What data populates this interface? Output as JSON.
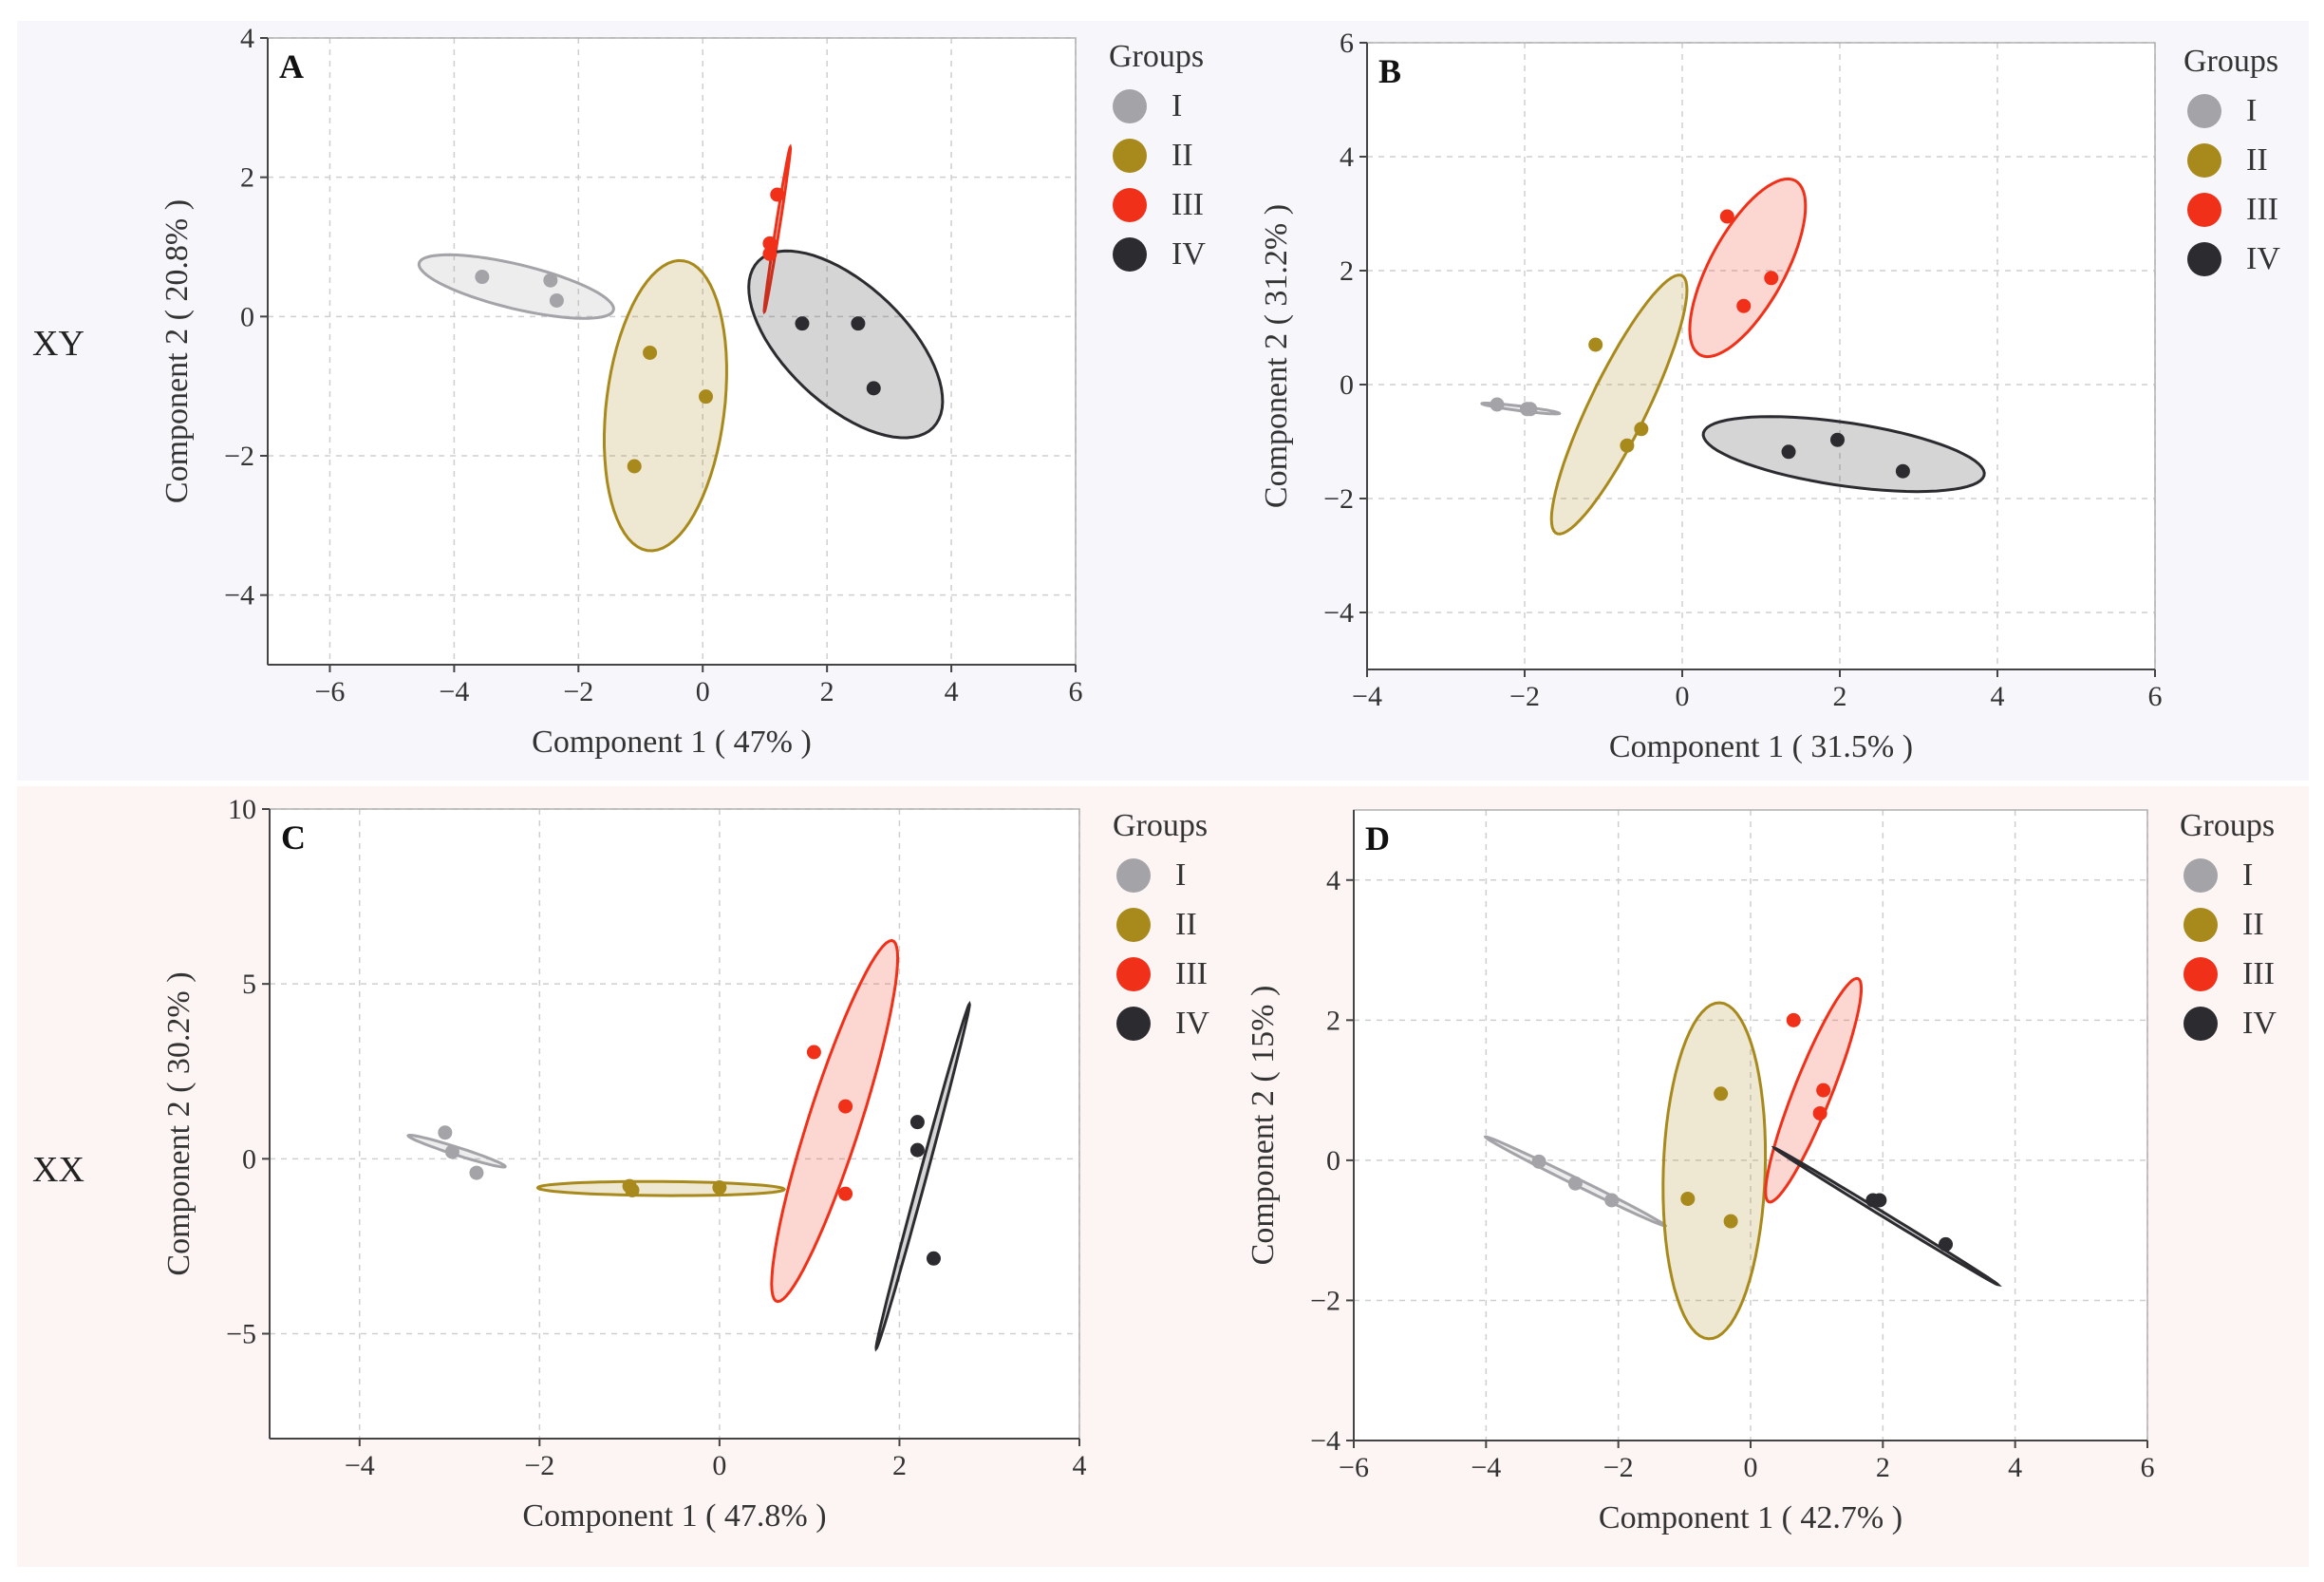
{
  "row_labels": [
    "XY",
    "XX"
  ],
  "colors": {
    "I": "#a3a3a8",
    "II": "#a8891c",
    "III": "#f03018",
    "IV": "#2c2c30"
  },
  "legend": {
    "title": "Groups",
    "items": [
      "I",
      "II",
      "III",
      "IV"
    ]
  },
  "chart_data": [
    {
      "type": "scatter",
      "panel": "A",
      "xlabel": "Component 1 ( 47% )",
      "ylabel": "Component 2 ( 20.8% )",
      "xlim": [
        -7,
        6
      ],
      "ylim": [
        -5,
        4
      ],
      "xticks": [
        -6,
        -4,
        -2,
        0,
        2,
        4,
        6
      ],
      "yticks": [
        -4,
        -2,
        0,
        2,
        4
      ],
      "series": [
        {
          "name": "I",
          "points": [
            [
              -3.55,
              0.57
            ],
            [
              -2.45,
              0.52
            ],
            [
              -2.35,
              0.23
            ]
          ],
          "ellipse": {
            "center": [
              -3.0,
              0.43
            ],
            "rx": 1.6,
            "ry": 0.32,
            "angle_deg": -12
          }
        },
        {
          "name": "II",
          "points": [
            [
              -0.85,
              -0.52
            ],
            [
              0.05,
              -1.15
            ],
            [
              -1.1,
              -2.15
            ]
          ],
          "ellipse": {
            "center": [
              -0.6,
              -1.28
            ],
            "rx": 2.1,
            "ry": 0.95,
            "angle_deg": 82
          }
        },
        {
          "name": "III",
          "points": [
            [
              1.2,
              1.75
            ],
            [
              1.08,
              1.05
            ],
            [
              1.08,
              0.9
            ]
          ],
          "ellipse": {
            "center": [
              1.2,
              1.25
            ],
            "rx": 1.2,
            "ry": 0.03,
            "angle_deg": 80
          }
        },
        {
          "name": "IV",
          "points": [
            [
              1.6,
              -0.1
            ],
            [
              2.5,
              -0.1
            ],
            [
              2.75,
              -1.03
            ]
          ],
          "ellipse": {
            "center": [
              2.3,
              -0.4
            ],
            "rx": 1.85,
            "ry": 0.9,
            "angle_deg": -38
          }
        }
      ]
    },
    {
      "type": "scatter",
      "panel": "B",
      "xlabel": "Component 1 ( 31.5% )",
      "ylabel": "Component 2 ( 31.2% )",
      "xlim": [
        -4,
        6
      ],
      "ylim": [
        -5,
        6
      ],
      "xticks": [
        -4,
        -2,
        0,
        2,
        4,
        6
      ],
      "yticks": [
        -4,
        -2,
        0,
        2,
        4,
        6
      ],
      "series": [
        {
          "name": "I",
          "points": [
            [
              -2.35,
              -0.35
            ],
            [
              -1.97,
              -0.43
            ],
            [
              -1.93,
              -0.43
            ]
          ],
          "ellipse": {
            "center": [
              -2.05,
              -0.42
            ],
            "rx": 0.5,
            "ry": 0.04,
            "angle_deg": -10
          }
        },
        {
          "name": "II",
          "points": [
            [
              -1.1,
              0.7
            ],
            [
              -0.7,
              -1.07
            ],
            [
              -0.52,
              -0.78
            ]
          ],
          "ellipse": {
            "center": [
              -0.8,
              -0.35
            ],
            "rx": 2.4,
            "ry": 0.38,
            "angle_deg": 71
          }
        },
        {
          "name": "III",
          "points": [
            [
              0.57,
              2.95
            ],
            [
              1.13,
              1.87
            ],
            [
              0.78,
              1.38
            ]
          ],
          "ellipse": {
            "center": [
              0.83,
              2.05
            ],
            "rx": 1.65,
            "ry": 0.5,
            "angle_deg": 70
          }
        },
        {
          "name": "IV",
          "points": [
            [
              1.35,
              -1.18
            ],
            [
              1.97,
              -0.97
            ],
            [
              2.8,
              -1.52
            ]
          ],
          "ellipse": {
            "center": [
              2.05,
              -1.22
            ],
            "rx": 1.82,
            "ry": 0.55,
            "angle_deg": -12
          }
        }
      ]
    },
    {
      "type": "scatter",
      "panel": "C",
      "xlabel": "Component 1 ( 47.8% )",
      "ylabel": "Component 2 ( 30.2% )",
      "xlim": [
        -5,
        4
      ],
      "ylim": [
        -8,
        10
      ],
      "xticks": [
        -4,
        -2,
        0,
        2,
        4
      ],
      "yticks": [
        -5,
        0,
        5,
        10
      ],
      "series": [
        {
          "name": "I",
          "points": [
            [
              -3.05,
              0.75
            ],
            [
              -2.97,
              0.2
            ],
            [
              -2.7,
              -0.4
            ]
          ],
          "ellipse": {
            "center": [
              -2.92,
              0.22
            ],
            "rx": 0.7,
            "ry": 0.09,
            "angle_deg": -40
          }
        },
        {
          "name": "II",
          "points": [
            [
              -1.0,
              -0.78
            ],
            [
              -0.97,
              -0.9
            ],
            [
              0.0,
              -0.82
            ]
          ],
          "ellipse": {
            "center": [
              -0.65,
              -0.85
            ],
            "rx": 1.37,
            "ry": 0.2,
            "angle_deg": -1
          }
        },
        {
          "name": "III",
          "points": [
            [
              1.05,
              3.05
            ],
            [
              1.4,
              1.5
            ],
            [
              1.4,
              -1.0
            ]
          ],
          "ellipse": {
            "center": [
              1.28,
              1.08
            ],
            "rx": 5.2,
            "ry": 0.3,
            "angle_deg": 83
          }
        },
        {
          "name": "IV",
          "points": [
            [
              2.2,
              1.05
            ],
            [
              2.2,
              0.25
            ],
            [
              2.38,
              -2.85
            ]
          ],
          "ellipse": {
            "center": [
              2.26,
              -0.5
            ],
            "rx": 4.95,
            "ry": 0.04,
            "angle_deg": 84
          }
        }
      ]
    },
    {
      "type": "scatter",
      "panel": "D",
      "xlabel": "Component 1 ( 42.7% )",
      "ylabel": "Component 2 ( 15% )",
      "xlim": [
        -6,
        6
      ],
      "ylim": [
        -4,
        5
      ],
      "xticks": [
        -6,
        -4,
        -2,
        0,
        2,
        4,
        6
      ],
      "yticks": [
        -4,
        -2,
        0,
        2,
        4
      ],
      "series": [
        {
          "name": "I",
          "points": [
            [
              -3.2,
              -0.02
            ],
            [
              -2.65,
              -0.33
            ],
            [
              -2.1,
              -0.57
            ]
          ],
          "ellipse": {
            "center": [
              -2.65,
              -0.3
            ],
            "rx": 1.5,
            "ry": 0.05,
            "angle_deg": -25
          }
        },
        {
          "name": "II",
          "points": [
            [
              -0.45,
              0.95
            ],
            [
              -0.95,
              -0.55
            ],
            [
              -0.3,
              -0.87
            ]
          ],
          "ellipse": {
            "center": [
              -0.55,
              -0.15
            ],
            "rx": 2.4,
            "ry": 0.77,
            "angle_deg": 88
          }
        },
        {
          "name": "III",
          "points": [
            [
              0.65,
              2.0
            ],
            [
              1.1,
              1.0
            ],
            [
              1.05,
              0.67
            ]
          ],
          "ellipse": {
            "center": [
              0.95,
              1.0
            ],
            "rx": 1.73,
            "ry": 0.28,
            "angle_deg": 67
          }
        },
        {
          "name": "IV",
          "points": [
            [
              1.85,
              -0.57
            ],
            [
              1.95,
              -0.57
            ],
            [
              2.95,
              -1.2
            ]
          ],
          "ellipse": {
            "center": [
              2.05,
              -0.8
            ],
            "rx": 1.95,
            "ry": 0.03,
            "angle_deg": -30
          }
        }
      ]
    }
  ]
}
